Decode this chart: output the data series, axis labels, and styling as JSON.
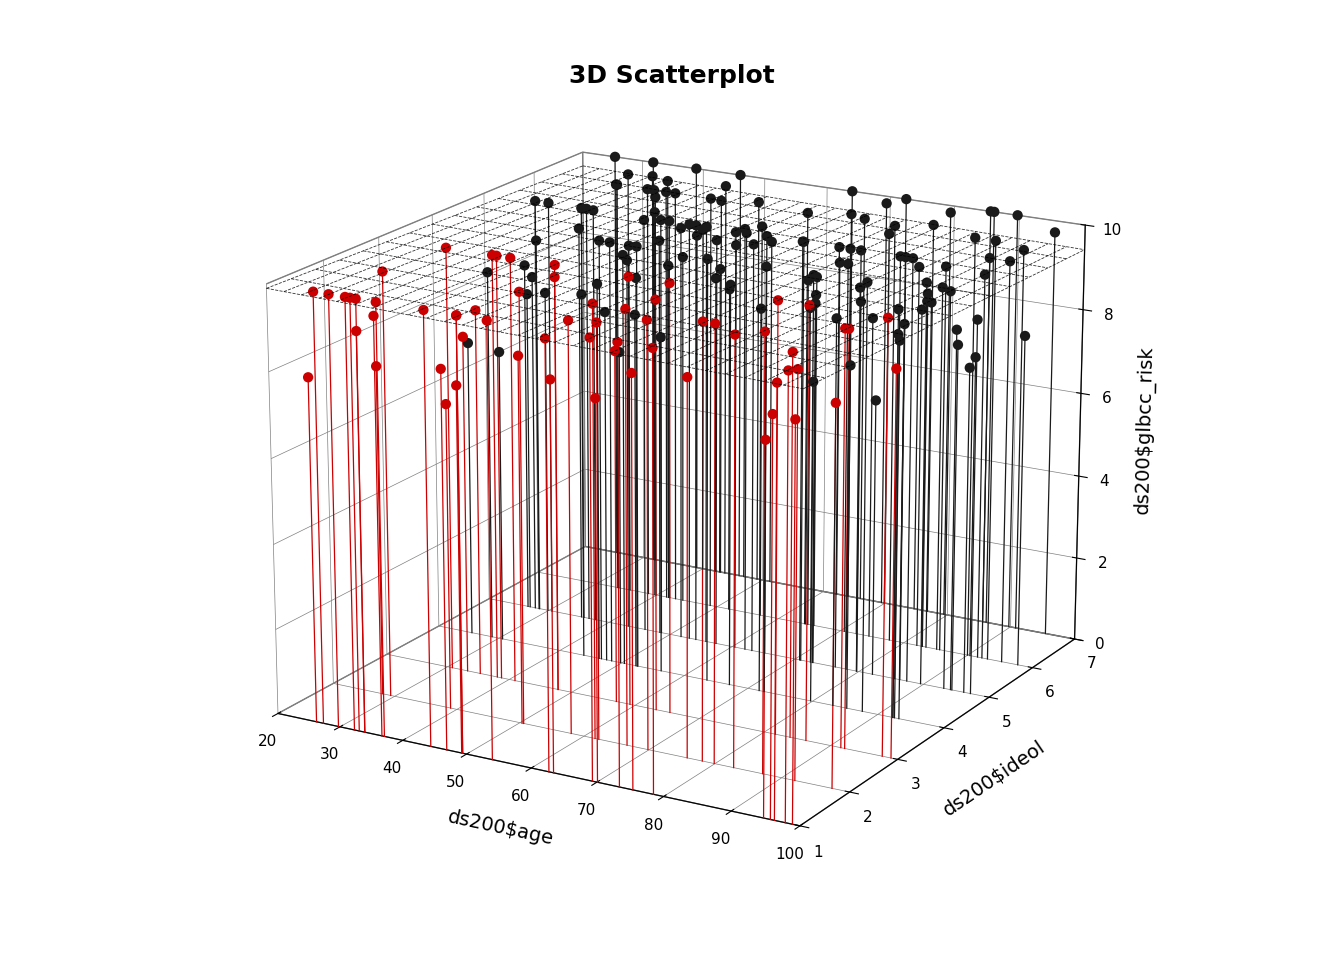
{
  "title": "3D Scatterplot",
  "xlabel": "ds200$age",
  "ylabel": "ds200$ideol",
  "zlabel": "ds200$glbcc_risk",
  "xlim": [
    20,
    100
  ],
  "ylim": [
    1,
    7
  ],
  "zlim": [
    0,
    10
  ],
  "xticks": [
    20,
    30,
    40,
    50,
    60,
    70,
    80,
    90,
    100
  ],
  "yticks": [
    1,
    2,
    3,
    4,
    5,
    6,
    7
  ],
  "zticks": [
    0,
    2,
    4,
    6,
    8,
    10
  ],
  "background_color": "#ffffff",
  "point_color_low_ideol": "#cc0000",
  "point_color_high_ideol": "#1a1a1a",
  "ideol_threshold": 3,
  "stem_color_low": "#cc0000",
  "stem_color_high": "#1a1a1a",
  "regression_plane_intercept": 10.0,
  "regression_plane_age_coef": -0.003,
  "regression_plane_ideol_coef": -0.04,
  "elev": 18,
  "azim": -60,
  "figsize": [
    13.44,
    9.6
  ],
  "dpi": 100,
  "seed": 42
}
